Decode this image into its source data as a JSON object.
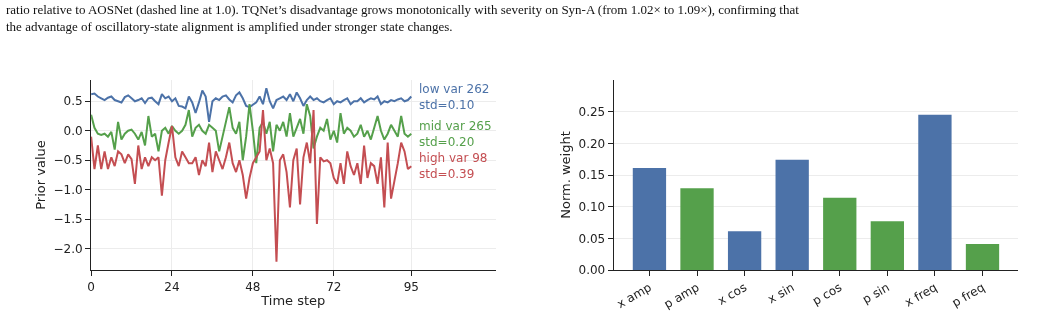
{
  "chart_data": [
    {
      "type": "line",
      "xlabel": "Time step",
      "ylabel": "Prior value",
      "grid": true,
      "legend": false,
      "marker": "none",
      "line_style": "solid",
      "annotations": [
        "ratio relative to AOSNet (dashed line at 1.0). TQNet’s disadvantage grows monotonically with severity on Syn-A (from 1.02× to 1.09×), confirming that\nthe advantage of oscillatory-state alignment is amplified under stronger state changes."
      ],
      "xlim": [
        0,
        120
      ],
      "xticks": [
        0,
        24,
        48,
        72,
        95
      ],
      "ylim": [
        -2.36,
        0.86
      ],
      "yticks": [
        {
          "value": 0.5,
          "label": "0.5"
        },
        {
          "value": 0,
          "label": "0.0"
        },
        {
          "value": -0.5,
          "label": "−0.5"
        },
        {
          "value": -1,
          "label": "−1.0"
        },
        {
          "value": -1.5,
          "label": "−1.5"
        },
        {
          "value": -2,
          "label": "−2.0"
        }
      ],
      "x": [
        0,
        1,
        2,
        3,
        4,
        5,
        6,
        7,
        8,
        9,
        10,
        11,
        12,
        13,
        14,
        15,
        16,
        17,
        18,
        19,
        20,
        21,
        22,
        23,
        24,
        25,
        26,
        27,
        28,
        29,
        30,
        31,
        32,
        33,
        34,
        35,
        36,
        37,
        38,
        39,
        40,
        41,
        42,
        43,
        44,
        45,
        46,
        47,
        48,
        49,
        50,
        51,
        52,
        53,
        54,
        55,
        56,
        57,
        58,
        59,
        60,
        61,
        62,
        63,
        64,
        65,
        66,
        67,
        68,
        69,
        70,
        71,
        72,
        73,
        74,
        75,
        76,
        77,
        78,
        79,
        80,
        81,
        82,
        83,
        84,
        85,
        86,
        87,
        88,
        89,
        90,
        91,
        92,
        93,
        94,
        95
      ],
      "series": [
        {
          "name": "low var 262\nstd=0.10",
          "color": "#4c72a8",
          "values": [
            0.62,
            0.63,
            0.58,
            0.55,
            0.52,
            0.56,
            0.58,
            0.52,
            0.5,
            0.48,
            0.57,
            0.6,
            0.55,
            0.5,
            0.52,
            0.55,
            0.47,
            0.55,
            0.56,
            0.5,
            0.45,
            0.62,
            0.55,
            0.58,
            0.5,
            0.55,
            0.42,
            0.41,
            0.38,
            0.58,
            0.48,
            0.3,
            0.48,
            0.68,
            0.58,
            0.15,
            0.5,
            0.55,
            0.52,
            0.58,
            0.6,
            0.53,
            0.48,
            0.6,
            0.65,
            0.55,
            0.42,
            0.4,
            0.44,
            0.48,
            0.58,
            0.45,
            0.72,
            0.5,
            0.38,
            0.52,
            0.55,
            0.58,
            0.52,
            0.62,
            0.5,
            0.65,
            0.55,
            0.42,
            0.52,
            0.58,
            0.52,
            0.55,
            0.5,
            0.48,
            0.52,
            0.55,
            0.45,
            0.5,
            0.48,
            0.52,
            0.55,
            0.45,
            0.5,
            0.5,
            0.55,
            0.48,
            0.52,
            0.55,
            0.53,
            0.58,
            0.45,
            0.5,
            0.48,
            0.52,
            0.5,
            0.53,
            0.55,
            0.5,
            0.52,
            0.58
          ]
        },
        {
          "name": "mid var 265\nstd=0.20",
          "color": "#55a04b",
          "values": [
            0.27,
            0.05,
            -0.05,
            -0.07,
            -0.05,
            -0.1,
            -0.02,
            -0.32,
            0.15,
            -0.15,
            -0.05,
            0.0,
            0.02,
            -0.05,
            -0.15,
            -0.02,
            -0.25,
            0.25,
            -0.1,
            -0.05,
            -0.35,
            0.0,
            0.05,
            -0.05,
            0.08,
            0.0,
            -0.05,
            0.0,
            0.1,
            0.35,
            -0.1,
            0.05,
            0.1,
            0.0,
            -0.05,
            0.1,
            0.05,
            0.0,
            -0.35,
            -0.1,
            0.15,
            0.4,
            0.05,
            -0.05,
            0.15,
            -0.5,
            -0.1,
            0.45,
            0.0,
            -0.55,
            0.05,
            0.15,
            -0.05,
            0.15,
            -0.35,
            0.1,
            0.0,
            0.15,
            -0.1,
            0.3,
            -0.1,
            0.05,
            0.2,
            -0.05,
            0.45,
            0.25,
            -0.3,
            -0.1,
            0.05,
            0.0,
            0.2,
            -0.15,
            0.0,
            -0.2,
            0.3,
            -0.05,
            0.05,
            0.0,
            -0.1,
            -0.05,
            0.1,
            -0.1,
            0.0,
            -0.15,
            0.05,
            0.25,
            0.0,
            -0.15,
            -0.05,
            0.1,
            0.0,
            -0.1,
            0.25,
            -0.05,
            -0.1,
            -0.05
          ]
        },
        {
          "name": "high var 98\nstd=0.39",
          "color": "#c44e52",
          "values": [
            -0.1,
            -0.65,
            -0.25,
            -0.65,
            -0.35,
            -0.65,
            -0.45,
            -0.6,
            -0.35,
            -0.4,
            -0.55,
            -0.4,
            -0.48,
            -0.9,
            -0.25,
            -0.65,
            -0.45,
            -0.6,
            -0.45,
            -0.5,
            -0.45,
            -1.1,
            -0.5,
            -0.2,
            0.08,
            -0.45,
            -0.6,
            -0.35,
            -0.45,
            -0.55,
            -0.55,
            -0.45,
            -0.75,
            -0.5,
            -0.6,
            -0.2,
            -0.7,
            -0.35,
            -0.5,
            -0.65,
            -0.45,
            -0.2,
            -0.55,
            -0.7,
            -0.5,
            -0.75,
            -1.15,
            -0.8,
            -0.55,
            -0.45,
            -0.35,
            0.35,
            -0.5,
            -0.3,
            -0.55,
            -2.22,
            -0.5,
            -0.4,
            -0.7,
            -1.3,
            -0.5,
            -0.3,
            -1.25,
            -0.45,
            -0.2,
            -0.55,
            0.35,
            -1.58,
            -0.45,
            -0.52,
            -0.5,
            -0.55,
            -0.8,
            -0.9,
            -0.55,
            -0.9,
            -0.35,
            -0.6,
            -0.75,
            -0.55,
            -0.9,
            -0.25,
            -0.8,
            -0.55,
            -0.6,
            -0.9,
            -0.45,
            -1.3,
            -0.2,
            -1.15,
            -0.85,
            -0.55,
            -0.2,
            -0.35,
            -0.65,
            -0.6
          ]
        }
      ]
    },
    {
      "type": "bar",
      "ylabel": "Norm. weight",
      "grid": "y",
      "legend": false,
      "categories": [
        "x amp",
        "p amp",
        "x cos",
        "x sin",
        "p cos",
        "p sin",
        "x freq",
        "p freq"
      ],
      "values": [
        0.161,
        0.129,
        0.061,
        0.174,
        0.114,
        0.077,
        0.245,
        0.041
      ],
      "colors": [
        "#4c72a8",
        "#55a04b",
        "#4c72a8",
        "#4c72a8",
        "#55a04b",
        "#55a04b",
        "#4c72a8",
        "#55a04b"
      ],
      "ylim": [
        0,
        0.3
      ],
      "yticks": [
        {
          "value": 0,
          "label": "0.00"
        },
        {
          "value": 0.05,
          "label": "0.05"
        },
        {
          "value": 0.1,
          "label": "0.10"
        },
        {
          "value": 0.15,
          "label": "0.15"
        },
        {
          "value": 0.2,
          "label": "0.20"
        },
        {
          "value": 0.25,
          "label": "0.25"
        }
      ]
    }
  ]
}
